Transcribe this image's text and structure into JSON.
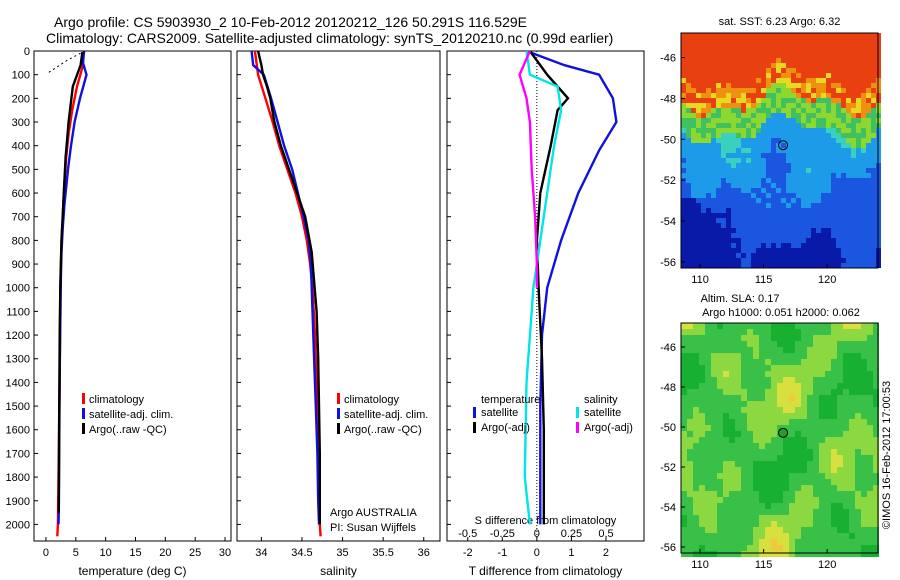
{
  "header": {
    "line1": "Argo profile: CS 5903930_2 10-Feb-2012 20120212_126 50.291S 116.529E",
    "line2": "Climatology: CARS2009. Satellite-adjusted climatology: synTS_20120210.nc (0.99d earlier)"
  },
  "colors": {
    "climatology": "#ff0000",
    "satellite": "#1010e0",
    "argo": "#000000",
    "sat_salinity": "#00e6e6",
    "argo_salinity": "#ff00ff"
  },
  "chart_data": [
    {
      "type": "line",
      "xlabel": "temperature (deg C)",
      "ylabel": "",
      "xlim": [
        -2,
        31
      ],
      "ylim": [
        2070,
        0
      ],
      "xticks": [
        0,
        5,
        10,
        15,
        20,
        25,
        30
      ],
      "yticks": [
        0,
        100,
        200,
        300,
        400,
        500,
        600,
        700,
        800,
        900,
        1000,
        1100,
        1200,
        1300,
        1400,
        1500,
        1600,
        1700,
        1800,
        1900,
        2000
      ],
      "legend": [
        "climatology",
        "satellite-adj. clim.",
        "Argo(..raw -QC)"
      ],
      "legend_position": "lower-center",
      "series": [
        {
          "name": "climatology",
          "color": "#ff0000",
          "x": [
            6.3,
            6.2,
            5.2,
            4.4,
            3.8,
            3.4,
            3.0,
            2.8,
            2.6,
            2.5,
            2.4,
            2.35,
            2.3,
            2.2,
            2.1,
            2.0,
            1.9
          ],
          "y": [
            0,
            60,
            150,
            250,
            350,
            450,
            600,
            700,
            800,
            900,
            1000,
            1200,
            1400,
            1600,
            1800,
            2000,
            2050
          ]
        },
        {
          "name": "satellite-adj. clim.",
          "color": "#1010e0",
          "x": [
            6.4,
            6.2,
            6.8,
            5.7,
            4.8,
            4.2,
            3.7,
            3.1,
            2.8,
            2.6,
            2.5,
            2.4,
            2.3,
            2.25,
            2.2,
            2.15,
            2.1
          ],
          "y": [
            0,
            50,
            100,
            200,
            300,
            400,
            500,
            650,
            750,
            850,
            950,
            1150,
            1350,
            1550,
            1750,
            1950,
            2000
          ]
        },
        {
          "name": "Argo(..raw -QC)",
          "color": "#000000",
          "x": [
            6.1,
            5.8,
            4.5,
            3.8,
            3.3,
            3.0,
            2.8,
            2.6,
            2.5,
            2.4,
            2.3,
            2.25,
            2.2,
            2.15
          ],
          "y": [
            5,
            60,
            150,
            300,
            450,
            600,
            700,
            800,
            900,
            1000,
            1200,
            1400,
            1600,
            1950
          ]
        },
        {
          "name": "",
          "color": "#000000",
          "dashed": true,
          "x": [
            0.5,
            3.5,
            6.5
          ],
          "y": [
            90,
            40,
            0
          ]
        }
      ]
    },
    {
      "type": "line",
      "xlabel": "salinity",
      "xlim": [
        33.7,
        36.2
      ],
      "ylim": [
        2070,
        0
      ],
      "xticks": [
        34,
        34.5,
        35,
        35.5,
        36
      ],
      "legend": [
        "climatology",
        "satellite-adj. clim.",
        "Argo(..raw -QC)"
      ],
      "legend_position": "lower-center",
      "annotation": [
        "Argo AUSTRALIA",
        "PI: Susan Wijffels"
      ],
      "series": [
        {
          "name": "climatology",
          "color": "#ff0000",
          "x": [
            33.92,
            33.96,
            34.05,
            34.14,
            34.22,
            34.32,
            34.42,
            34.5,
            34.56,
            34.6,
            34.63,
            34.66,
            34.68,
            34.7,
            34.71,
            34.72,
            34.73
          ],
          "y": [
            0,
            100,
            200,
            300,
            400,
            500,
            600,
            700,
            800,
            900,
            1000,
            1200,
            1400,
            1600,
            1800,
            2000,
            2050
          ]
        },
        {
          "name": "satellite-adj. clim.",
          "color": "#1010e0",
          "x": [
            33.88,
            33.9,
            34.03,
            34.12,
            34.2,
            34.28,
            34.38,
            34.45,
            34.52,
            34.58,
            34.61,
            34.63,
            34.65,
            34.67,
            34.69,
            34.7,
            34.71
          ],
          "y": [
            0,
            60,
            100,
            200,
            300,
            400,
            500,
            600,
            700,
            800,
            900,
            1100,
            1300,
            1500,
            1700,
            1900,
            2000
          ]
        },
        {
          "name": "Argo(..raw -QC)",
          "color": "#000000",
          "x": [
            33.96,
            34.0,
            34.02,
            34.07,
            34.11,
            34.16,
            34.24,
            34.34,
            34.44,
            34.54,
            34.62,
            34.68,
            34.7,
            34.71,
            34.72,
            34.72
          ],
          "y": [
            0,
            60,
            100,
            150,
            200,
            300,
            400,
            500,
            600,
            700,
            850,
            1100,
            1300,
            1500,
            1700,
            2000
          ]
        }
      ]
    },
    {
      "type": "line",
      "xlabel": "T difference from climatology",
      "xlabel_top": "S difference from climatology",
      "xlim": [
        -2.6,
        3.1
      ],
      "xticks": [
        -2,
        -1,
        0,
        1,
        2
      ],
      "xticks_top": [
        "-0.5",
        "-0.25",
        "0",
        "0.25",
        "0.5"
      ],
      "xticks_top_values": [
        -0.5,
        -0.25,
        0,
        0.25,
        0.5
      ],
      "ylim": [
        2070,
        0
      ],
      "legend": [
        "temperature",
        "salinity",
        "satellite",
        "Argo(-adj)",
        "satellite",
        "Argo(-adj)"
      ],
      "legend_position": "lower-center",
      "series": [
        {
          "name": "temperature satellite",
          "color": "#1010e0",
          "x": [
            -0.3,
            0.8,
            1.8,
            2.2,
            2.3,
            1.8,
            1.2,
            0.7,
            0.3,
            0.15,
            0.1,
            0.1,
            0.1
          ],
          "y": [
            0,
            60,
            100,
            200,
            300,
            420,
            600,
            800,
            1000,
            1200,
            1500,
            1800,
            2000
          ]
        },
        {
          "name": "temperature Argo(-adj)",
          "color": "#000000",
          "x": [
            -0.2,
            0.3,
            0.9,
            0.6,
            0.4,
            0.1,
            0.0,
            0.05,
            0.15,
            0.2,
            0.2
          ],
          "y": [
            0,
            100,
            200,
            250,
            400,
            600,
            800,
            1000,
            1300,
            1600,
            2000
          ]
        },
        {
          "name": "salinity satellite",
          "color": "#00e6e6",
          "x": [
            -0.3,
            -0.2,
            0.6,
            0.7,
            0.5,
            0.3,
            0.1,
            -0.1,
            -0.3,
            -0.35,
            -0.2
          ],
          "y": [
            0,
            100,
            150,
            250,
            400,
            600,
            800,
            1000,
            1400,
            1800,
            2000
          ]
        },
        {
          "name": "salinity Argo(-adj)",
          "color": "#ff00ff",
          "x": [
            -0.2,
            -0.5,
            -0.3,
            -0.2,
            -0.15,
            -0.05,
            0.0,
            0.0
          ],
          "y": [
            0,
            100,
            200,
            300,
            500,
            700,
            900,
            1000
          ]
        }
      ]
    },
    {
      "type": "heatmap",
      "title": "sat. SST: 6.23 Argo: 6.32",
      "xlim": [
        108.5,
        124
      ],
      "ylim": [
        -56.3,
        -44.8
      ],
      "xticks": [
        110,
        115,
        120
      ],
      "yticks": [
        -46,
        -48,
        -50,
        -52,
        -54,
        -56
      ],
      "marker": {
        "lon": 116.529,
        "lat": -50.291
      }
    },
    {
      "type": "heatmap",
      "title": "Altim. SLA: 0.17",
      "subtitle": "Argo h1000: 0.051 h2000: 0.062",
      "xlim": [
        108.5,
        124
      ],
      "ylim": [
        -56.3,
        -44.8
      ],
      "xticks": [
        110,
        115,
        120
      ],
      "yticks": [
        -46,
        -48,
        -50,
        -52,
        -54,
        -56
      ],
      "marker": {
        "lon": 116.529,
        "lat": -50.291
      },
      "side_text": "©IMOS 16-Feb-2012 17:00:53"
    }
  ]
}
